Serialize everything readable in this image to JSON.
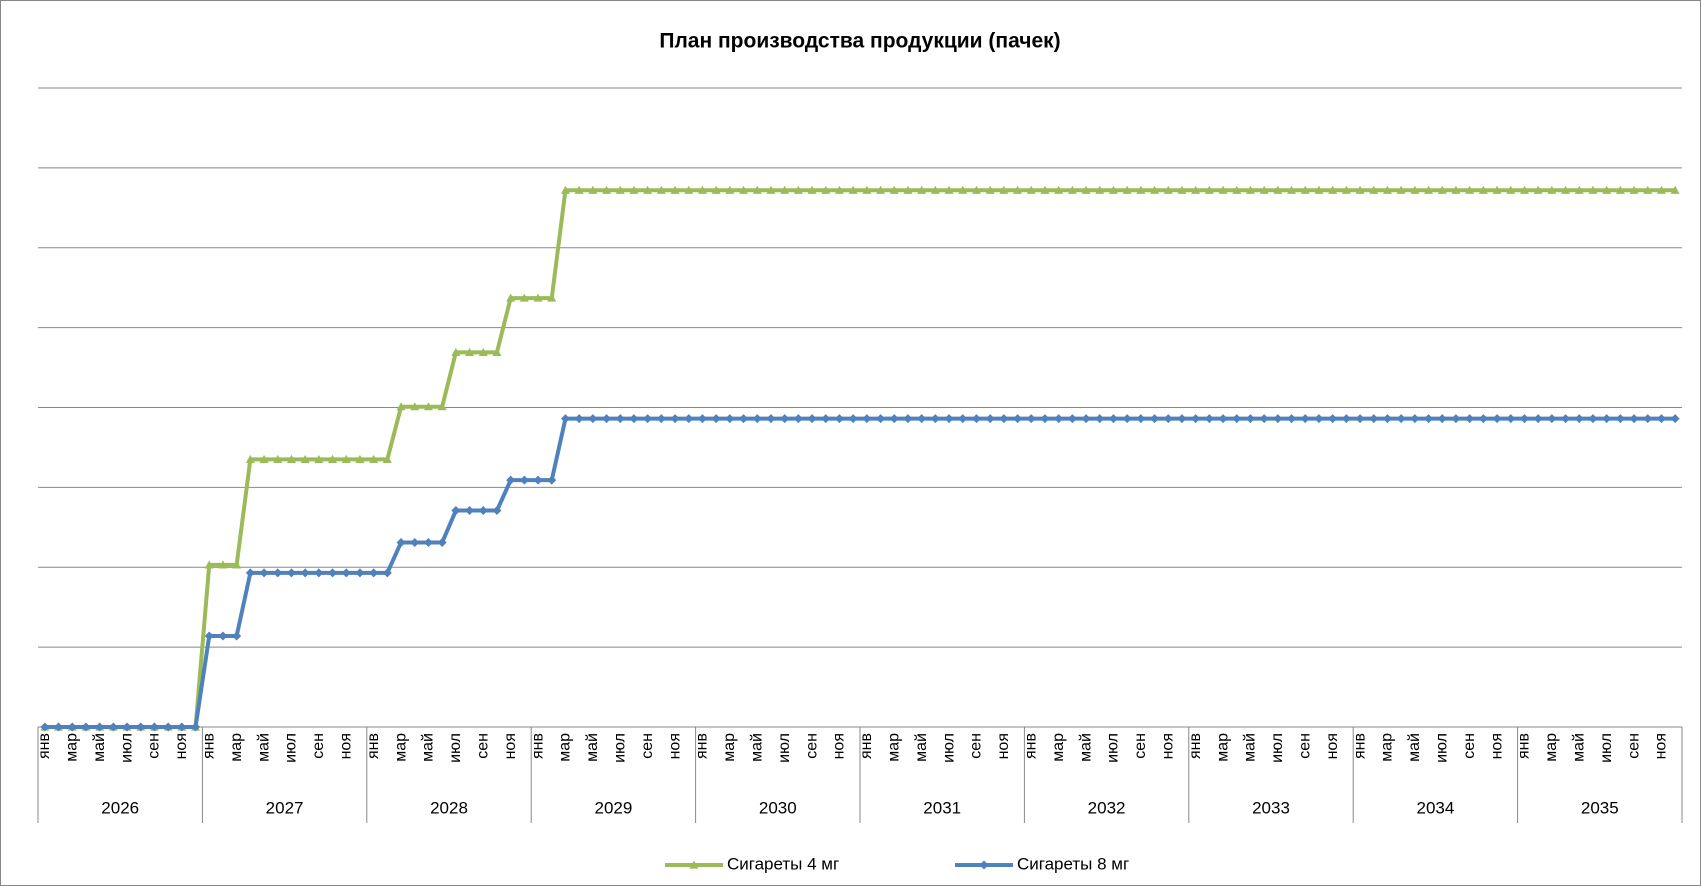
{
  "chart_data": {
    "type": "line",
    "title": "План производства продукции (пачек)",
    "categories": [
      "янв",
      null,
      "мар",
      null,
      "май",
      null,
      "июл",
      null,
      "сен",
      null,
      "ноя",
      null,
      "янв",
      null,
      "мар",
      null,
      "май",
      null,
      "июл",
      null,
      "сен",
      null,
      "ноя",
      null,
      "янв",
      null,
      "мар",
      null,
      "май",
      null,
      "июл",
      null,
      "сен",
      null,
      "ноя",
      null,
      "янв",
      null,
      "мар",
      null,
      "май",
      null,
      "июл",
      null,
      "сен",
      null,
      "ноя",
      null,
      "янв",
      null,
      "мар",
      null,
      "май",
      null,
      "июл",
      null,
      "сен",
      null,
      "ноя",
      null,
      "янв",
      null,
      "мар",
      null,
      "май",
      null,
      "июл",
      null,
      "сен",
      null,
      "ноя",
      null,
      "янв",
      null,
      "мар",
      null,
      "май",
      null,
      "июл",
      null,
      "сен",
      null,
      "ноя",
      null,
      "янв",
      null,
      "мар",
      null,
      "май",
      null,
      "июл",
      null,
      "сен",
      null,
      "ноя",
      null,
      "янв",
      null,
      "мар",
      null,
      "май",
      null,
      "июл",
      null,
      "сен",
      null,
      "ноя",
      null,
      "янв",
      null,
      "мар",
      null,
      "май",
      null,
      "июл",
      null,
      "сен",
      null,
      "ноя",
      null
    ],
    "year_labels": [
      "2026",
      "2027",
      "2028",
      "2029",
      "2030",
      "2031",
      "2032",
      "2033",
      "2034",
      "2035"
    ],
    "series": [
      {
        "name": "Сигареты 4 мг",
        "color": "#9bbb59",
        "marker": "triangle",
        "values": [
          0,
          0,
          0,
          0,
          0,
          0,
          0,
          0,
          0,
          0,
          0,
          0,
          2.03,
          2.03,
          2.03,
          3.35,
          3.35,
          3.35,
          3.35,
          3.35,
          3.35,
          3.35,
          3.35,
          3.35,
          3.35,
          3.35,
          4.01,
          4.01,
          4.01,
          4.01,
          4.69,
          4.69,
          4.69,
          4.69,
          5.37,
          5.37,
          5.37,
          5.37,
          6.72,
          6.72,
          6.72,
          6.72,
          6.72,
          6.72,
          6.72,
          6.72,
          6.72,
          6.72,
          6.72,
          6.72,
          6.72,
          6.72,
          6.72,
          6.72,
          6.72,
          6.72,
          6.72,
          6.72,
          6.72,
          6.72,
          6.72,
          6.72,
          6.72,
          6.72,
          6.72,
          6.72,
          6.72,
          6.72,
          6.72,
          6.72,
          6.72,
          6.72,
          6.72,
          6.72,
          6.72,
          6.72,
          6.72,
          6.72,
          6.72,
          6.72,
          6.72,
          6.72,
          6.72,
          6.72,
          6.72,
          6.72,
          6.72,
          6.72,
          6.72,
          6.72,
          6.72,
          6.72,
          6.72,
          6.72,
          6.72,
          6.72,
          6.72,
          6.72,
          6.72,
          6.72,
          6.72,
          6.72,
          6.72,
          6.72,
          6.72,
          6.72,
          6.72,
          6.72,
          6.72,
          6.72,
          6.72,
          6.72,
          6.72,
          6.72,
          6.72,
          6.72,
          6.72,
          6.72,
          6.72,
          6.72
        ]
      },
      {
        "name": "Сигареты 8 мг",
        "color": "#4f81bd",
        "marker": "diamond",
        "values": [
          0,
          0,
          0,
          0,
          0,
          0,
          0,
          0,
          0,
          0,
          0,
          0,
          1.14,
          1.14,
          1.14,
          1.93,
          1.93,
          1.93,
          1.93,
          1.93,
          1.93,
          1.93,
          1.93,
          1.93,
          1.93,
          1.93,
          2.31,
          2.31,
          2.31,
          2.31,
          2.71,
          2.71,
          2.71,
          2.71,
          3.09,
          3.09,
          3.09,
          3.09,
          3.86,
          3.86,
          3.86,
          3.86,
          3.86,
          3.86,
          3.86,
          3.86,
          3.86,
          3.86,
          3.86,
          3.86,
          3.86,
          3.86,
          3.86,
          3.86,
          3.86,
          3.86,
          3.86,
          3.86,
          3.86,
          3.86,
          3.86,
          3.86,
          3.86,
          3.86,
          3.86,
          3.86,
          3.86,
          3.86,
          3.86,
          3.86,
          3.86,
          3.86,
          3.86,
          3.86,
          3.86,
          3.86,
          3.86,
          3.86,
          3.86,
          3.86,
          3.86,
          3.86,
          3.86,
          3.86,
          3.86,
          3.86,
          3.86,
          3.86,
          3.86,
          3.86,
          3.86,
          3.86,
          3.86,
          3.86,
          3.86,
          3.86,
          3.86,
          3.86,
          3.86,
          3.86,
          3.86,
          3.86,
          3.86,
          3.86,
          3.86,
          3.86,
          3.86,
          3.86,
          3.86,
          3.86,
          3.86,
          3.86,
          3.86,
          3.86,
          3.86,
          3.86,
          3.86,
          3.86,
          3.86,
          3.86
        ]
      }
    ],
    "ylim": [
      0,
      8
    ],
    "yticks": [
      0,
      1,
      2,
      3,
      4,
      5,
      6,
      7,
      8
    ],
    "grid": true,
    "legend": "bottom"
  }
}
